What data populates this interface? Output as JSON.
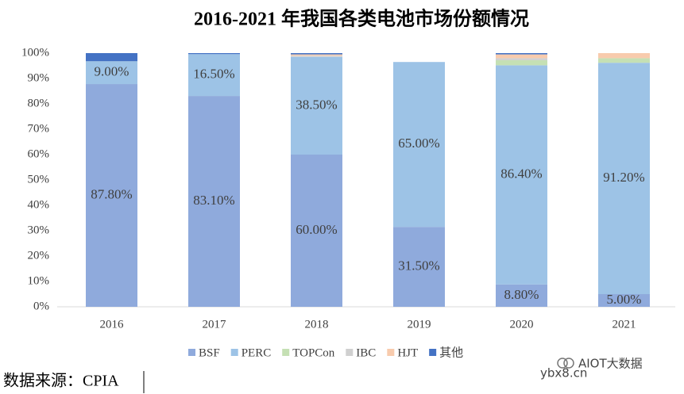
{
  "chart_data": {
    "type": "stacked-bar",
    "title": "2016-2021 年我国各类电池市场份额情况",
    "categories": [
      "2016",
      "2017",
      "2018",
      "2019",
      "2020",
      "2021"
    ],
    "series": [
      {
        "name": "BSF",
        "color": "#8faadc",
        "values": [
          87.8,
          83.1,
          60.0,
          31.5,
          8.8,
          5.0
        ],
        "value_labels": [
          "87.80%",
          "83.10%",
          "60.00%",
          "31.50%",
          "8.80%",
          "5.00%"
        ]
      },
      {
        "name": "PERC",
        "color": "#9dc3e6",
        "values": [
          9.0,
          16.5,
          38.5,
          65.0,
          86.4,
          91.2
        ],
        "value_labels": [
          "9.00%",
          "16.50%",
          "38.50%",
          "65.00%",
          "86.40%",
          "91.20%"
        ]
      },
      {
        "name": "TOPCon",
        "color": "#c5e0b4",
        "values": [
          0,
          0,
          0,
          0,
          2.0,
          1.8
        ]
      },
      {
        "name": "IBC",
        "color": "#d0d0d0",
        "values": [
          0,
          0,
          0.5,
          0,
          0.8,
          0
        ]
      },
      {
        "name": "HJT",
        "color": "#f8cbad",
        "values": [
          0,
          0,
          0.5,
          0,
          1.5,
          2.0
        ]
      },
      {
        "name": "其他",
        "color": "#4472c4",
        "values": [
          3.2,
          0.4,
          0.5,
          0,
          0.5,
          0
        ]
      }
    ],
    "ylim": [
      0,
      100
    ],
    "yticks": [
      {
        "value": 0,
        "label": "0%"
      },
      {
        "value": 10,
        "label": "10%"
      },
      {
        "value": 20,
        "label": "20%"
      },
      {
        "value": 30,
        "label": "30%"
      },
      {
        "value": 40,
        "label": "40%"
      },
      {
        "value": 50,
        "label": "50%"
      },
      {
        "value": 60,
        "label": "60%"
      },
      {
        "value": 70,
        "label": "70%"
      },
      {
        "value": 80,
        "label": "80%"
      },
      {
        "value": 90,
        "label": "90%"
      },
      {
        "value": 100,
        "label": "100%"
      }
    ],
    "grid": false,
    "legend": "bottom",
    "source": "数据来源：CPIA",
    "watermark": "AIOT大数据",
    "watermark_site": "ybx8.cn"
  }
}
